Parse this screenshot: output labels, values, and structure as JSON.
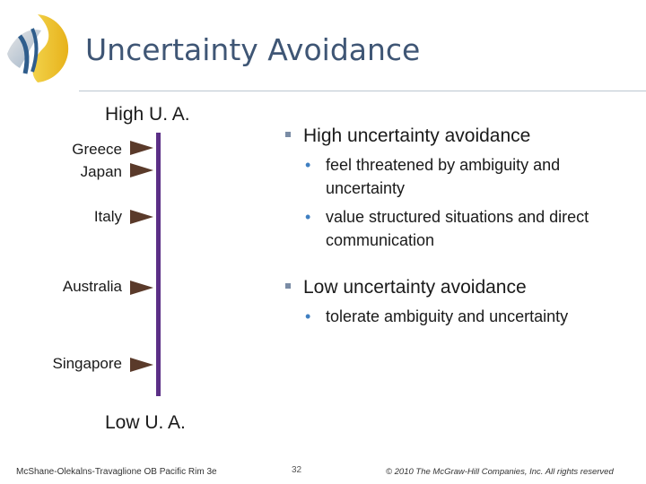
{
  "slide": {
    "title": "Uncertainty Avoidance"
  },
  "scale": {
    "top_label": "High U. A.",
    "bottom_label": "Low U. A.",
    "bar_color": "#5b2f86",
    "countries": [
      {
        "name": "Greece"
      },
      {
        "name": "Japan"
      },
      {
        "name": "Italy"
      },
      {
        "name": "Australia"
      },
      {
        "name": "Singapore"
      }
    ]
  },
  "content": {
    "high": {
      "heading": "High uncertainty avoidance",
      "points": [
        "feel threatened by ambiguity and uncertainty",
        "value structured situations and direct communication"
      ]
    },
    "low": {
      "heading": "Low uncertainty avoidance",
      "points": [
        "tolerate ambiguity and uncertainty"
      ]
    }
  },
  "footer": {
    "left": "McShane-Olekalns-Travaglione OB Pacific Rim 3e",
    "page": "32",
    "copyright": "© 2010 The McGraw-Hill Companies, Inc. All rights reserved"
  },
  "colors": {
    "title": "#3f5675",
    "arrow": "#5a3a2a",
    "bullet_square": "#7a8ca5",
    "bullet_dot": "#3f7fc1"
  }
}
